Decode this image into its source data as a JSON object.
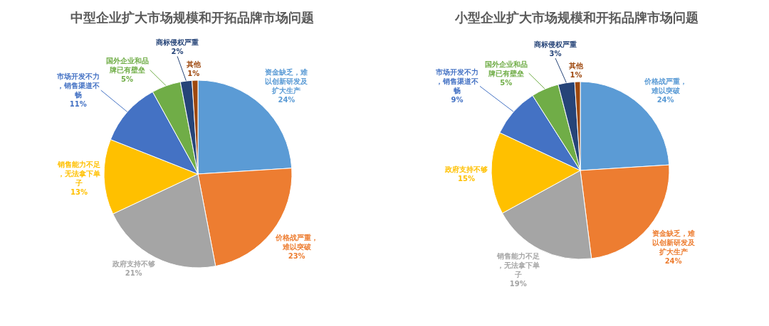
{
  "chart_data": [
    {
      "type": "pie",
      "title": "中型企业扩大市场规模和开拓品牌市场问题",
      "legend": false,
      "categories": [
        "资金缺乏，难以创新研发及扩大生产",
        "价格战严重，难以突破",
        "政府支持不够",
        "销售能力不足，无法拿下单子",
        "市场开发不力，销售渠道不畅",
        "国外企业和品牌已有壁垒",
        "商标侵权严重",
        "其他"
      ],
      "values": [
        24,
        23,
        21,
        13,
        11,
        5,
        2,
        1
      ],
      "value_labels": [
        "24%",
        "23%",
        "21%",
        "13%",
        "11%",
        "5%",
        "2%",
        "1%"
      ],
      "colors": [
        "#5b9bd5",
        "#ed7d31",
        "#a5a5a5",
        "#ffc000",
        "#4472c4",
        "#70ad47",
        "#264478",
        "#9e480e"
      ]
    },
    {
      "type": "pie",
      "title": "小型企业扩大市场规模和开拓品牌市场问题",
      "legend": false,
      "categories": [
        "价格战严重，难以突破",
        "资金缺乏，难以创新研发及扩大生产",
        "销售能力不足，无法拿下单子",
        "政府支持不够",
        "市场开发不力，销售渠道不畅",
        "国外企业和品牌已有壁垒",
        "商标侵权严重",
        "其他"
      ],
      "values": [
        24,
        24,
        19,
        15,
        9,
        5,
        3,
        1
      ],
      "value_labels": [
        "24%",
        "24%",
        "19%",
        "15%",
        "9%",
        "5%",
        "3%",
        "1%"
      ],
      "colors": [
        "#5b9bd5",
        "#ed7d31",
        "#a5a5a5",
        "#ffc000",
        "#4472c4",
        "#70ad47",
        "#264478",
        "#9e480e"
      ]
    }
  ]
}
